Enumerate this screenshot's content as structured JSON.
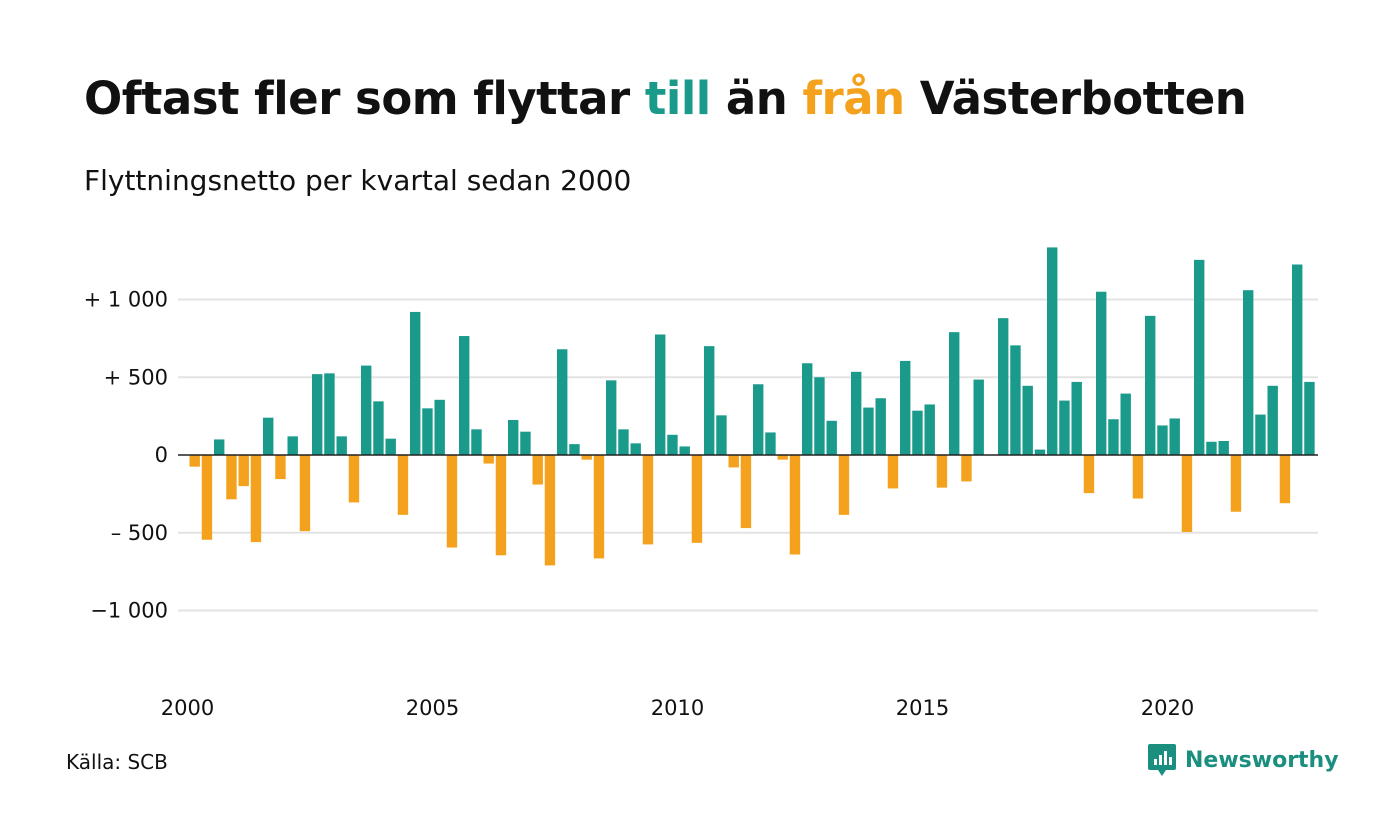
{
  "title": {
    "part1": "Oftast fler som flyttar ",
    "up_word": "till",
    "part2": " än ",
    "down_word": "från",
    "part3": " Västerbotten"
  },
  "subtitle": "Flyttningsnetto per kvartal sedan 2000",
  "source": "Källa: SCB",
  "brand": "Newsworthy",
  "colors": {
    "positive": "#1a9a8b",
    "negative": "#f4a21d",
    "grid": "#e3e3e3",
    "zero": "#222222",
    "brand": "#1a8f80"
  },
  "chart_data": {
    "type": "bar",
    "title": "Oftast fler som flyttar till än från Västerbotten",
    "subtitle": "Flyttningsnetto per kvartal sedan 2000",
    "ylim": [
      -1250,
      1350
    ],
    "yticks": [
      {
        "value": 1000,
        "label": "+ 1 000"
      },
      {
        "value": 500,
        "label": "+   500"
      },
      {
        "value": 0,
        "label": "0"
      },
      {
        "value": -500,
        "label": "–   500"
      },
      {
        "value": -1000,
        "label": "−1 000"
      }
    ],
    "xticks": [
      {
        "quarter_index": 0,
        "label": "2000"
      },
      {
        "quarter_index": 20,
        "label": "2005"
      },
      {
        "quarter_index": 40,
        "label": "2010"
      },
      {
        "quarter_index": 60,
        "label": "2015"
      },
      {
        "quarter_index": 80,
        "label": "2020"
      }
    ],
    "start": "2000 Q1",
    "end": "2022 Q4",
    "grid": true,
    "values": [
      -75,
      -545,
      100,
      -285,
      -200,
      -560,
      240,
      -155,
      120,
      -490,
      520,
      525,
      120,
      -305,
      575,
      345,
      105,
      -385,
      920,
      300,
      355,
      -595,
      765,
      165,
      -55,
      -645,
      225,
      150,
      -190,
      -710,
      680,
      70,
      -30,
      -665,
      480,
      165,
      75,
      -575,
      775,
      130,
      55,
      -565,
      700,
      255,
      -80,
      -470,
      455,
      145,
      -30,
      -640,
      590,
      500,
      220,
      -385,
      535,
      305,
      365,
      -215,
      605,
      285,
      325,
      -210,
      790,
      -170,
      485,
      0,
      880,
      705,
      445,
      35,
      1335,
      350,
      470,
      -245,
      1050,
      230,
      395,
      -280,
      895,
      190,
      235,
      -495,
      1255,
      85,
      90,
      -365,
      1060,
      260,
      445,
      -310,
      1225,
      470
    ]
  }
}
